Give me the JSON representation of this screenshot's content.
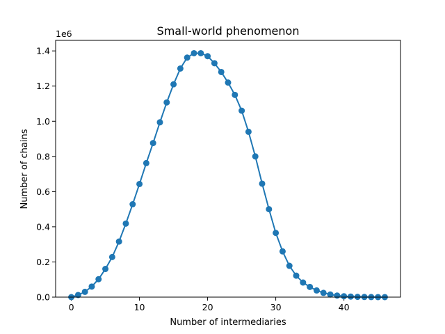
{
  "chart_data": {
    "type": "line",
    "title": "Small-world phenomenon",
    "xlabel": "Number of intermediaries",
    "ylabel": "Number of chains",
    "y_offset_label": "1e6",
    "xlim": [
      -2.3,
      48.3
    ],
    "ylim": [
      0,
      1.46
    ],
    "y_unit_scale": 1000000,
    "xticks": [
      0,
      10,
      20,
      30,
      40
    ],
    "yticks": [
      0.0,
      0.2,
      0.4,
      0.6,
      0.8,
      1.0,
      1.2,
      1.4
    ],
    "ytick_labels": [
      "0.0",
      "0.2",
      "0.4",
      "0.6",
      "0.8",
      "1.0",
      "1.2",
      "1.4"
    ],
    "grid": false,
    "colors": {
      "series": "#1f77b4"
    },
    "series": [
      {
        "marker": "circle",
        "x": [
          0,
          1,
          2,
          3,
          4,
          5,
          6,
          7,
          8,
          9,
          10,
          11,
          12,
          13,
          14,
          15,
          16,
          17,
          18,
          19,
          20,
          21,
          22,
          23,
          24,
          25,
          26,
          27,
          28,
          29,
          30,
          31,
          32,
          33,
          34,
          35,
          36,
          37,
          38,
          39,
          40,
          41,
          42,
          43,
          44,
          45,
          46
        ],
        "y": [
          0,
          12000,
          30000,
          60000,
          102000,
          160000,
          228000,
          316000,
          418000,
          528000,
          643000,
          762000,
          876000,
          994000,
          1107000,
          1210000,
          1300000,
          1362000,
          1387000,
          1387000,
          1370000,
          1330000,
          1280000,
          1220000,
          1150000,
          1060000,
          940000,
          800000,
          645000,
          500000,
          365000,
          260000,
          178000,
          122000,
          83000,
          58000,
          38000,
          24000,
          15000,
          9000,
          5000,
          3000,
          1500,
          800,
          400,
          200,
          100
        ]
      }
    ]
  }
}
